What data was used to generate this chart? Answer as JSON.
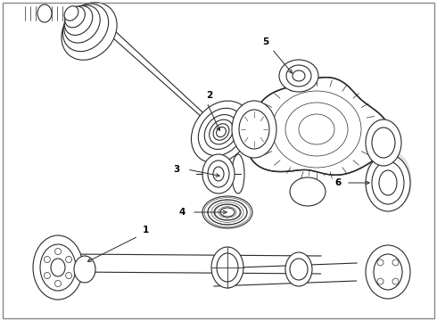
{
  "background_color": "#ffffff",
  "line_color": "#2a2a2a",
  "label_color": "#000000",
  "figsize": [
    4.9,
    3.6
  ],
  "dpi": 100,
  "border": true
}
